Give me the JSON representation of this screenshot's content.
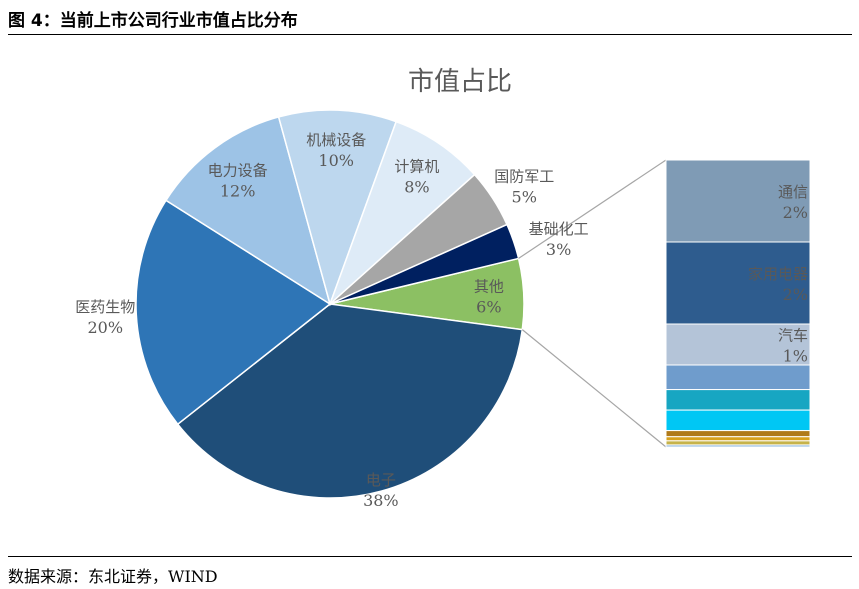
{
  "header": {
    "figure_title": "图 4：当前上市公司行业市值占比分布"
  },
  "footer": {
    "source": "数据来源：东北证券，WIND"
  },
  "chart_data": {
    "type": "pie",
    "title": "市值占比",
    "slices": [
      {
        "name": "其他",
        "value": 6,
        "label": "6%",
        "color": "#8cc063"
      },
      {
        "name": "电子",
        "value": 38,
        "label": "38%",
        "color": "#1f4e79"
      },
      {
        "name": "医药生物",
        "value": 20,
        "label": "20%",
        "color": "#2e75b6"
      },
      {
        "name": "电力设备",
        "value": 12,
        "label": "12%",
        "color": "#9dc3e6"
      },
      {
        "name": "机械设备",
        "value": 10,
        "label": "10%",
        "color": "#bdd7ee"
      },
      {
        "name": "计算机",
        "value": 8,
        "label": "8%",
        "color": "#deebf7"
      },
      {
        "name": "国防军工",
        "value": 5,
        "label": "5%",
        "color": "#a6a6a6"
      },
      {
        "name": "基础化工",
        "value": 3,
        "label": "3%",
        "color": "#002060"
      }
    ],
    "breakdown": {
      "of": "其他",
      "segments": [
        {
          "name": "通信",
          "value": 2,
          "label": "2%",
          "color": "#7f9bb5"
        },
        {
          "name": "家用电器",
          "value": 2,
          "label": "2%",
          "color": "#2e5c8e"
        },
        {
          "name": "汽车",
          "value": 1,
          "label": "1%",
          "color": "#b4c4d8"
        },
        {
          "name": "",
          "value": 0.6,
          "label": "",
          "color": "#6f9ccc"
        },
        {
          "name": "",
          "value": 0.5,
          "label": "",
          "color": "#17a6c2"
        },
        {
          "name": "",
          "value": 0.5,
          "label": "",
          "color": "#00c7f4"
        },
        {
          "name": "",
          "value": 0.15,
          "label": "",
          "color": "#b07a1a"
        },
        {
          "name": "",
          "value": 0.1,
          "label": "",
          "color": "#d7a11d"
        },
        {
          "name": "",
          "value": 0.1,
          "label": "",
          "color": "#c6b34a"
        },
        {
          "name": "",
          "value": 0.05,
          "label": "",
          "color": "#8ab4dd"
        }
      ]
    }
  }
}
